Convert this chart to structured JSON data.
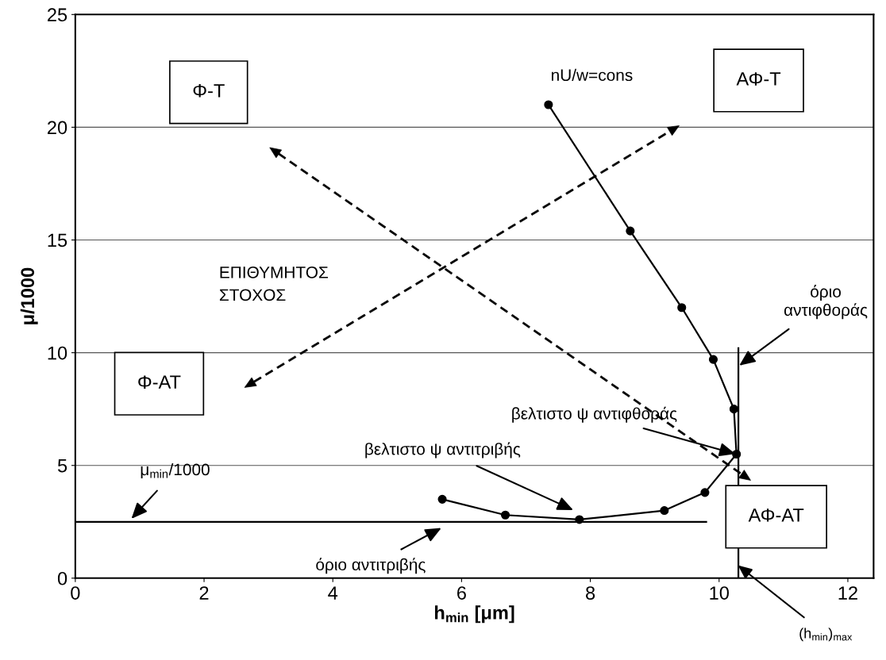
{
  "chart_data": {
    "type": "line",
    "xlabel": "h$_{min}$ [μm]",
    "ylabel": "μ/1000",
    "xlim": [
      0,
      12.4
    ],
    "xticks": [
      0,
      2,
      4,
      6,
      8,
      10,
      12
    ],
    "ylim": [
      0,
      25
    ],
    "yticks": [
      0,
      5,
      10,
      15,
      20,
      25
    ],
    "grid": "y",
    "marker": "circle",
    "line_style": "solid",
    "series": [
      {
        "color": "#000000",
        "x": [
          7.35,
          8.62,
          9.42,
          9.91,
          10.23,
          10.27,
          9.78,
          9.15,
          7.83,
          6.68,
          5.7
        ],
        "values": [
          21.0,
          15.4,
          12.0,
          9.7,
          7.5,
          5.5,
          3.8,
          3.0,
          2.6,
          2.8,
          3.5
        ]
      },
      {
        "color": "#000000",
        "marker": "none",
        "x": [
          0,
          9.8
        ],
        "values": [
          2.5,
          2.5
        ]
      },
      {
        "color": "#000000",
        "marker": "none",
        "x": [
          10.3,
          10.3
        ],
        "values": [
          0,
          10.2
        ]
      }
    ],
    "annotations": [
      "nU/w=cons",
      "Φ-Τ",
      "ΑΦ-Τ",
      "Φ-ΑΤ",
      "ΑΦ-ΑΤ",
      "ΕΠΙΘΥΜΗΤΟΣ\nΣΤΟΧΟΣ",
      {
        "text": "όριο\nαντιφθοράς",
        "x": 10.3,
        "y": 9.4
      },
      {
        "text": "βελτιστο ψ αντιφθοράς",
        "x": 10.27,
        "y": 5.5
      },
      "βελτιστο ψ αντιτριβής",
      {
        "text": "μ$_{min}$/1000",
        "x": 0.86,
        "y": 2.6
      },
      "όριο αντιτριβής",
      {
        "text": "(h$_{min}$)$_{max}$",
        "x": 10.28,
        "y": 0.6
      }
    ]
  }
}
